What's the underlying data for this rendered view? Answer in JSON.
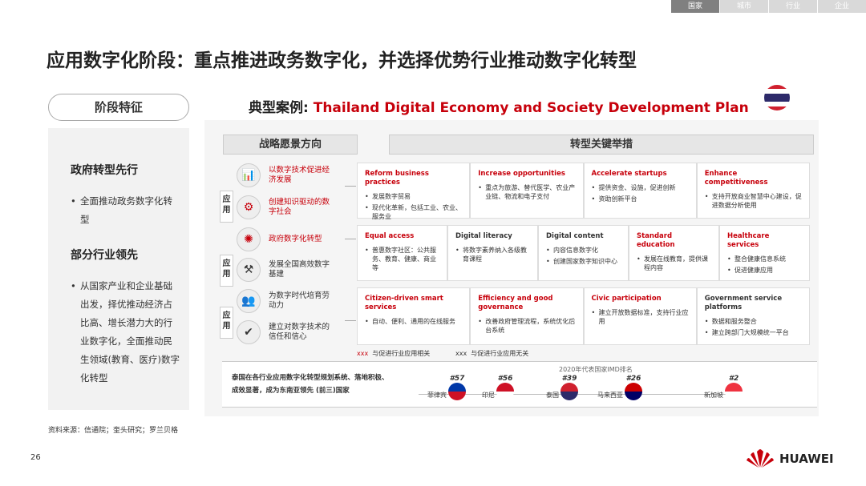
{
  "tabs": [
    "国家",
    "城市",
    "行业",
    "企业"
  ],
  "title": "应用数字化阶段：重点推进政务数字化，并选择优势行业推动数字化转型",
  "left": {
    "pill": "阶段特征",
    "h1": "政府转型先行",
    "b1": "全面推动政务数字化转型",
    "h2": "部分行业领先",
    "b2": "从国家产业和企业基础出发，择优推动经济占比高、增长潜力大的行业数字化，全面推动民生领域(教育、医疗)数字化转型"
  },
  "source": "资料来源：信通院；奎头研究；罗兰贝格",
  "page_number": "26",
  "logo": "HUAWEI",
  "case": {
    "prefix": "典型案例: ",
    "name": "Thailand Digital Economy and Society Development Plan"
  },
  "vision_header": "战略愿景方向",
  "actions_header": "转型关键举措",
  "side_label": "应用",
  "visions": [
    {
      "text": "以数字技术促进经济发展",
      "icon": "chart-icon",
      "red": true
    },
    {
      "text": "创建知识驱动的数字社会",
      "icon": "knowledge-icon",
      "red": true
    },
    {
      "text": "政府数字化转型",
      "icon": "government-icon",
      "red": true
    },
    {
      "text": "发展全国高效数字基建",
      "icon": "infrastructure-icon",
      "red": false
    },
    {
      "text": "为数字时代培育劳动力",
      "icon": "workforce-icon",
      "red": false
    },
    {
      "text": "建立对数字技术的信任和信心",
      "icon": "shield-check-icon",
      "red": false
    }
  ],
  "rows": [
    [
      {
        "t": "Reform business practices",
        "red": true,
        "b": [
          "发展数字贸易",
          "现代化革新，包括工业、农业、服务业"
        ]
      },
      {
        "t": "Increase opportunities",
        "red": true,
        "b": [
          "重点为旅游、替代医学、农业产业链、物流和电子支付"
        ]
      },
      {
        "t": "Accelerate startups",
        "red": true,
        "b": [
          "提供资金、设施，促进创新",
          "资助创新平台"
        ]
      },
      {
        "t": "Enhance competitiveness",
        "red": true,
        "b": [
          "支持开放商业智慧中心建设，促进数据分析使用"
        ]
      }
    ],
    [
      {
        "t": "Equal access",
        "red": true,
        "b": [
          "普惠数字社区：公共服务、教育、健康、商业等"
        ]
      },
      {
        "t": "Digital literacy",
        "red": false,
        "b": [
          "将数字素养纳入各级教育课程"
        ]
      },
      {
        "t": "Digital content",
        "red": false,
        "b": [
          "内容信息数字化",
          "创建国家数字知识中心"
        ]
      },
      {
        "t": "Standard education",
        "red": true,
        "b": [
          "发展在线教育，提供课程内容"
        ]
      },
      {
        "t": "Healthcare services",
        "red": true,
        "b": [
          "整合健康信息系统",
          "促进健康应用"
        ]
      }
    ],
    [
      {
        "t": "Citizen-driven smart services",
        "red": true,
        "b": [
          "自动、便利、通用的在线服务"
        ]
      },
      {
        "t": "Efficiency and good governance",
        "red": true,
        "b": [
          "改善政府管理流程，系统优化后台系统"
        ]
      },
      {
        "t": "Civic participation",
        "red": true,
        "b": [
          "建立开放数据标准，支持行业应用"
        ]
      },
      {
        "t": "Government service platforms",
        "red": false,
        "b": [
          "数据和服务整合",
          "建立跨部门大规模统一平台"
        ]
      }
    ]
  ],
  "legend": {
    "mark": "xxx",
    "related": "与促进行业应用相关",
    "unrelated": "与促进行业应用无关"
  },
  "ranking": {
    "summary": "泰国在各行业应用数字化转型规划系统、落地积极、成效显著，成为东南亚领先 (前三)国家",
    "title": "2020年代表国家IMD排名",
    "countries": [
      {
        "name": "菲律宾",
        "rank": "#57"
      },
      {
        "name": "印尼",
        "rank": "#56"
      },
      {
        "name": "泰国",
        "rank": "#39"
      },
      {
        "name": "马来西亚",
        "rank": "#26"
      },
      {
        "name": "新加坡",
        "rank": "#2"
      }
    ]
  },
  "colors": {
    "accent": "#c7000b"
  }
}
